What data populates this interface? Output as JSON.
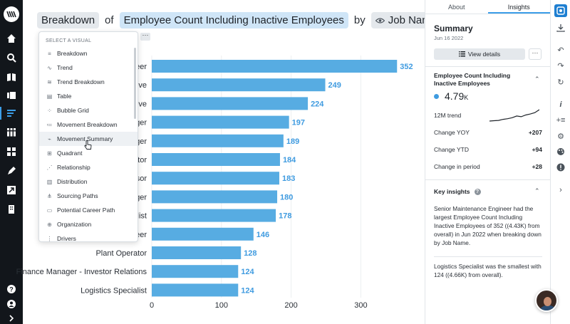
{
  "title": {
    "breakdown_label": "Breakdown",
    "of_text": "of",
    "metric": "Employee Count Including Inactive Employees",
    "by_text": "by",
    "dimension": "Job Name",
    "more": "···"
  },
  "dropdown": {
    "header": "SELECT A VISUAL",
    "items": [
      {
        "label": "Breakdown",
        "icon": "breakdown-icon"
      },
      {
        "label": "Trend",
        "icon": "trend-icon"
      },
      {
        "label": "Trend Breakdown",
        "icon": "trend-breakdown-icon"
      },
      {
        "label": "Table",
        "icon": "table-icon"
      },
      {
        "label": "Bubble Grid",
        "icon": "bubble-grid-icon"
      },
      {
        "label": "Movement Breakdown",
        "icon": "movement-breakdown-icon"
      },
      {
        "label": "Movement Summary",
        "icon": "movement-summary-icon"
      },
      {
        "label": "Quadrant",
        "icon": "quadrant-icon"
      },
      {
        "label": "Relationship",
        "icon": "relationship-icon"
      },
      {
        "label": "Distribution",
        "icon": "distribution-icon"
      },
      {
        "label": "Sourcing Paths",
        "icon": "sourcing-paths-icon"
      },
      {
        "label": "Potential Career Path",
        "icon": "career-path-icon"
      },
      {
        "label": "Organization",
        "icon": "organization-icon"
      },
      {
        "label": "Drivers",
        "icon": "drivers-icon"
      }
    ],
    "hovered_index": 6
  },
  "chart_data": {
    "type": "bar",
    "orientation": "horizontal",
    "categories": [
      "eer",
      "ive",
      "ive",
      "ger",
      "ger",
      "tor",
      "sor",
      "ger",
      "list",
      "eer",
      "Plant Operator",
      "Finance Manager - Investor Relations",
      "Logistics Specialist"
    ],
    "values": [
      352,
      249,
      224,
      197,
      189,
      184,
      183,
      180,
      178,
      146,
      128,
      124,
      124
    ],
    "xlim": [
      0,
      380
    ],
    "xticks": [
      0,
      100,
      200,
      300
    ],
    "bar_color": "#57ace2",
    "label_color": "#3f9be0"
  },
  "insights": {
    "tabs": [
      "About",
      "Insights"
    ],
    "active_tab": 1,
    "summary_title": "Summary",
    "summary_date": "Jun 16 2022",
    "view_details": "View details",
    "more": "···",
    "metric_name": "Employee Count Including Inactive Employees",
    "metric_value": "4.79",
    "metric_suffix": "K",
    "trend_label": "12M trend",
    "trend_values": [
      4.45,
      4.46,
      4.47,
      4.5,
      4.52,
      4.55,
      4.6,
      4.58,
      4.63,
      4.66,
      4.7,
      4.79
    ],
    "stats": [
      {
        "label": "Change YOY",
        "value": "+207"
      },
      {
        "label": "Change YTD",
        "value": "+94"
      },
      {
        "label": "Change in period",
        "value": "+28"
      }
    ],
    "key_insights_title": "Key insights",
    "key_insights_help": "?",
    "insight_1": "Senior Maintenance Engineer had the largest Employee Count Including Inactive Employees of 352 ((4.43K) from overall) in Jun 2022 when breaking down by Job Name.",
    "insight_2": "Logistics Specialist was the smallest with 124 ((4.66K) from overall)."
  },
  "colors": {
    "accent": "#3c9ee8",
    "nav_bg": "#12161b",
    "pill_blue": "#cfe5f7",
    "pill_gray": "#e4e8ec"
  }
}
